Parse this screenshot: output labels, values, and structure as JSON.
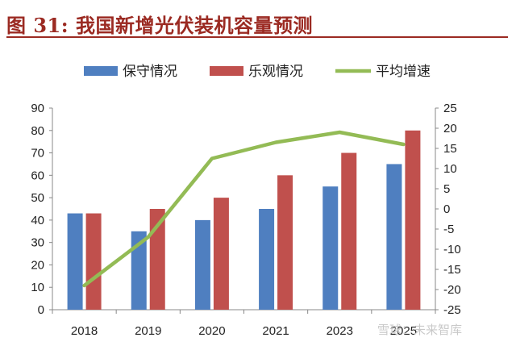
{
  "figure": {
    "title": "图 31:    我国新增光伏装机容量预测"
  },
  "watermark": "雪球：未来智库",
  "colors": {
    "conservative": "#4f7fc0",
    "optimistic": "#c0504d",
    "growth": "#93bb55",
    "title": "#9b2a22"
  },
  "chart_data": {
    "type": "bar",
    "categories": [
      "2018",
      "2019",
      "2020",
      "2021",
      "2023",
      "2025"
    ],
    "series": [
      {
        "name": "保守情况",
        "type": "bar",
        "axis": "left",
        "values": [
          43,
          35,
          40,
          45,
          55,
          65
        ]
      },
      {
        "name": "乐观情况",
        "type": "bar",
        "axis": "left",
        "values": [
          43,
          45,
          50,
          60,
          70,
          80
        ]
      },
      {
        "name": "平均增速",
        "type": "line",
        "axis": "right",
        "values": [
          -19,
          -7,
          12.5,
          16.5,
          19,
          16
        ]
      }
    ],
    "left_axis": {
      "ylim": [
        0,
        90
      ],
      "ticks": [
        0,
        10,
        20,
        30,
        40,
        50,
        60,
        70,
        80,
        90
      ]
    },
    "right_axis": {
      "ylim": [
        -25,
        25
      ],
      "ticks": [
        25,
        20,
        15,
        10,
        5,
        0,
        -5,
        -10,
        -15,
        -20,
        -25
      ]
    },
    "legend": {
      "position": "top-center"
    },
    "grid": false
  }
}
